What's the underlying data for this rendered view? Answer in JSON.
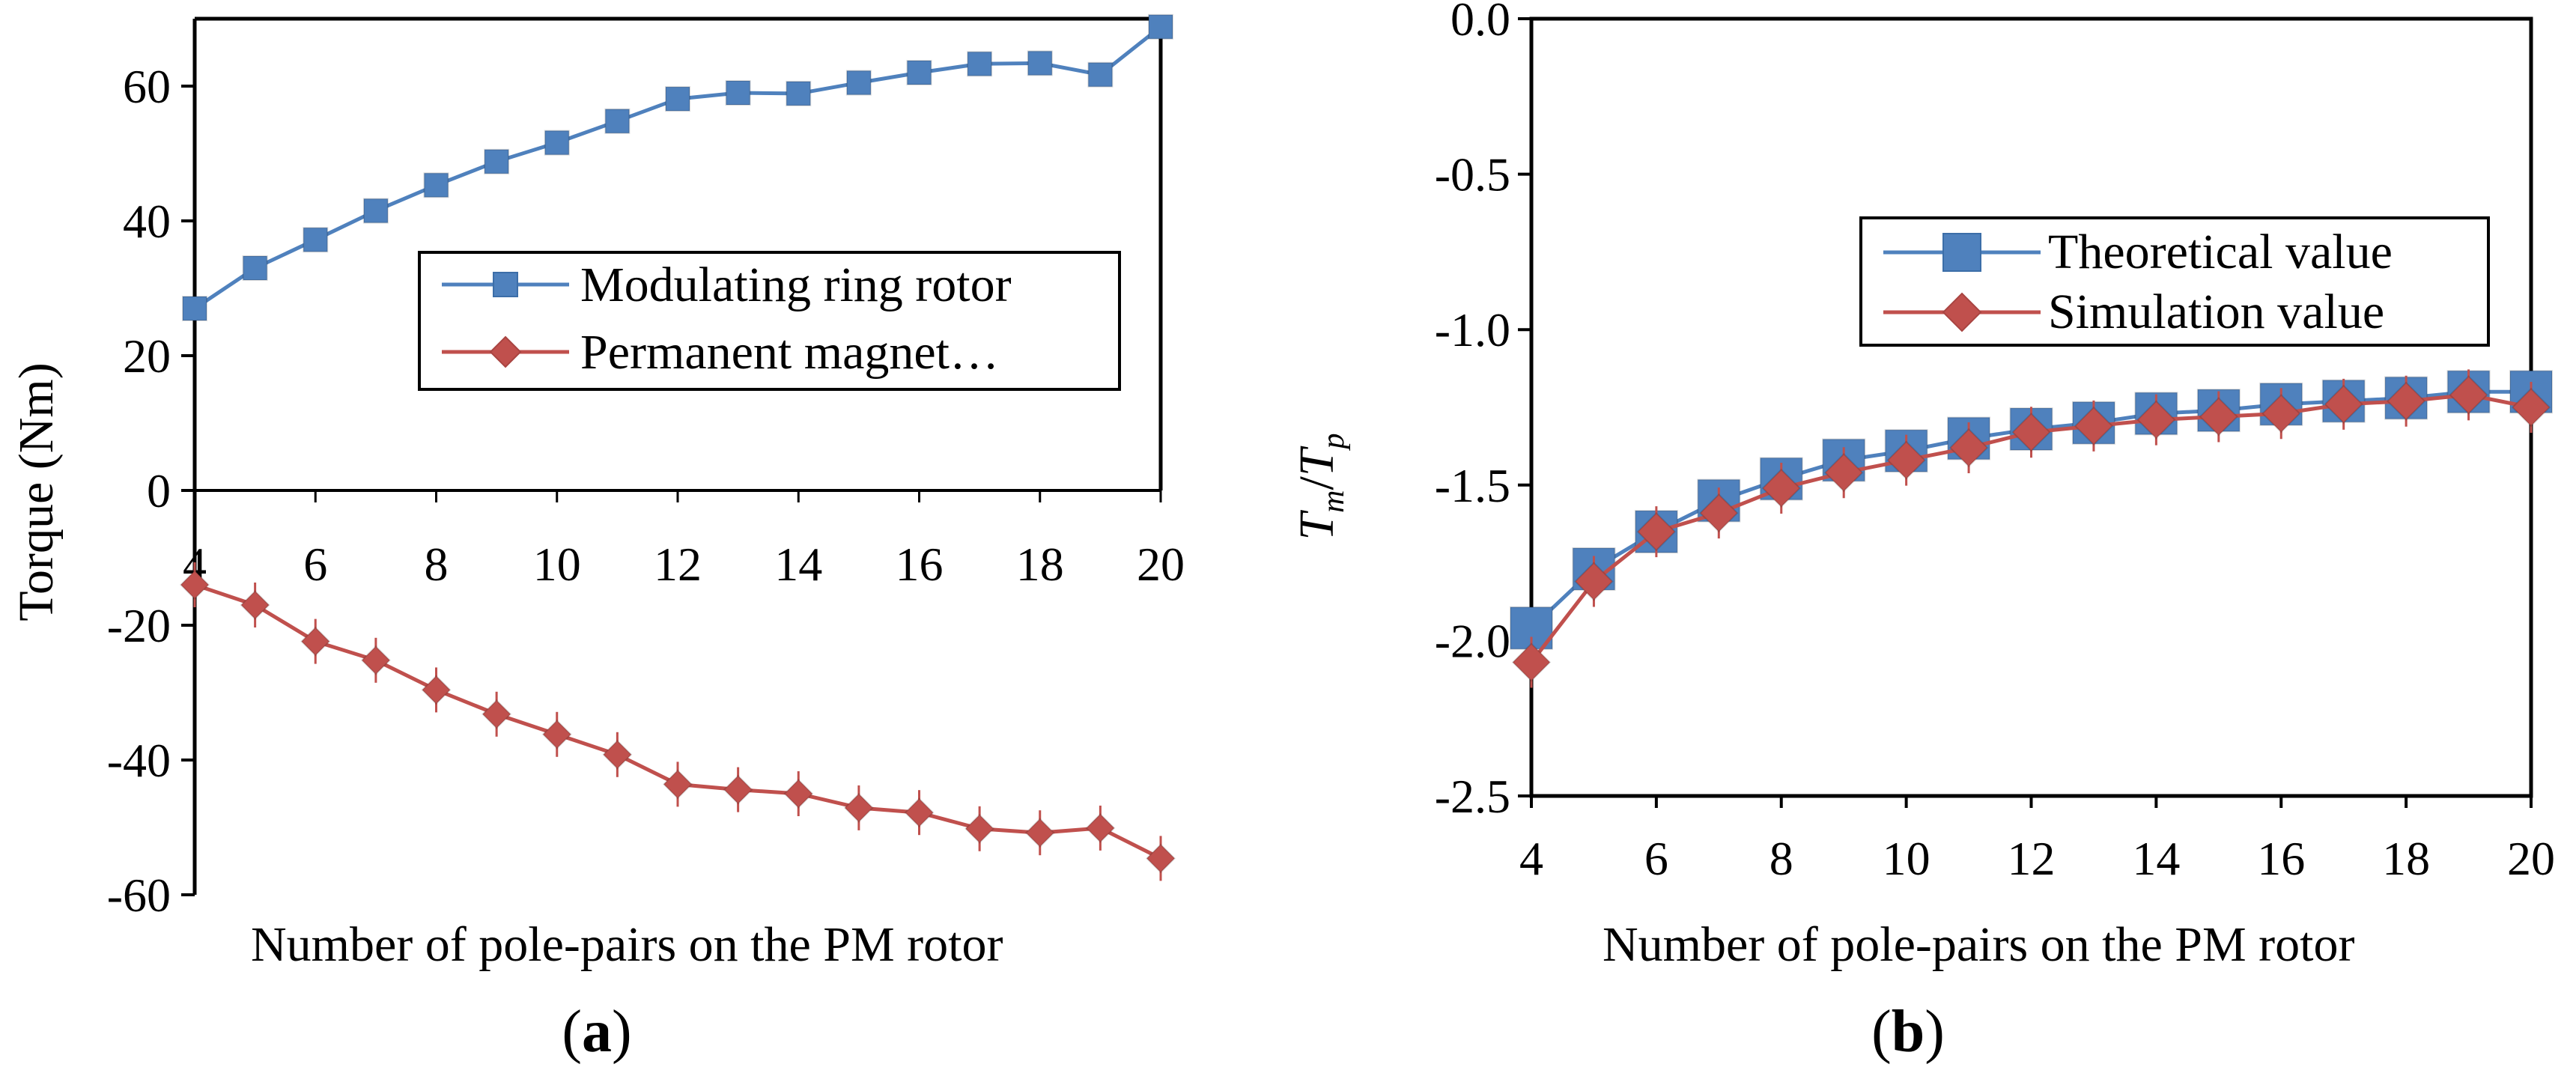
{
  "chart_data": [
    {
      "type": "line",
      "panel_label": "(a)",
      "panel_letter": "a",
      "xlabel": "Number of pole-pairs on the PM rotor",
      "ylabel": "Torque (Nm)",
      "xlim": [
        4,
        20
      ],
      "ylim": [
        -60,
        70
      ],
      "xticks": [
        4,
        6,
        8,
        10,
        12,
        14,
        16,
        18,
        20
      ],
      "yticks": [
        -60,
        -40,
        -20,
        0,
        20,
        40,
        60
      ],
      "x": [
        4,
        5,
        6,
        7,
        8,
        9,
        10,
        11,
        12,
        13,
        14,
        15,
        16,
        17,
        18,
        19,
        20
      ],
      "series": [
        {
          "name": "Modulating ring rotor",
          "color": "#4f81bd",
          "marker": "square",
          "values": [
            27,
            33,
            37.2,
            41.5,
            45.3,
            48.8,
            51.6,
            54.8,
            58.1,
            59.0,
            58.9,
            60.5,
            62.0,
            63.3,
            63.4,
            61.7,
            68.8
          ]
        },
        {
          "name": "Permanent magnet…",
          "color": "#c0504d",
          "marker": "diamond",
          "values": [
            -14,
            -17,
            -22.4,
            -25.2,
            -29.6,
            -33.2,
            -36.2,
            -39.2,
            -43.6,
            -44.4,
            -45,
            -47.1,
            -47.8,
            -50.2,
            -50.8,
            -50.1,
            -54.6
          ]
        }
      ]
    },
    {
      "type": "line",
      "panel_label": "(b)",
      "panel_letter": "b",
      "xlabel": "Number of pole-pairs on the PM rotor",
      "ylabel": "Tm/Tp",
      "ylabel_parts": {
        "num": "T",
        "num_sub": "m",
        "sep": "/",
        "den": "T",
        "den_sub": "p"
      },
      "xlim": [
        4,
        20
      ],
      "ylim": [
        -2.5,
        0.0
      ],
      "xticks": [
        4,
        6,
        8,
        10,
        12,
        14,
        16,
        18,
        20
      ],
      "yticks": [
        "0.0",
        "-0.5",
        "-1.0",
        "-1.5",
        "-2.0",
        "-2.5"
      ],
      "x": [
        4,
        5,
        6,
        7,
        8,
        9,
        10,
        11,
        12,
        13,
        14,
        15,
        16,
        17,
        18,
        19,
        20
      ],
      "series": [
        {
          "name": "Theoretical value",
          "color": "#4f81bd",
          "marker": "square",
          "values": [
            -1.96,
            -1.77,
            -1.65,
            -1.55,
            -1.48,
            -1.42,
            -1.39,
            -1.35,
            -1.32,
            -1.3,
            -1.27,
            -1.26,
            -1.24,
            -1.23,
            -1.22,
            -1.2,
            -1.2
          ]
        },
        {
          "name": "Simulation value",
          "color": "#c0504d",
          "marker": "diamond",
          "values": [
            -2.07,
            -1.81,
            -1.65,
            -1.59,
            -1.51,
            -1.46,
            -1.42,
            -1.38,
            -1.33,
            -1.31,
            -1.29,
            -1.28,
            -1.27,
            -1.24,
            -1.23,
            -1.21,
            -1.25
          ]
        }
      ]
    }
  ]
}
